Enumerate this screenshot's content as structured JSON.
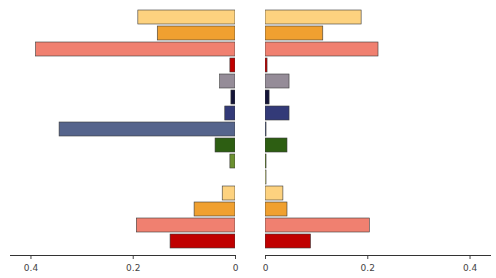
{
  "chart_data": [
    {
      "type": "bar",
      "orientation": "horizontal",
      "tick_labels": "x",
      "categories": [
        null,
        null,
        null,
        null,
        null,
        null,
        null,
        null,
        null,
        null,
        null,
        null,
        null,
        null,
        null
      ],
      "values": [
        0.19,
        0.152,
        0.39,
        0.01,
        0.03,
        0.008,
        0.02,
        0.344,
        0.039,
        0.01,
        0,
        0.025,
        0.08,
        0.193,
        0.127
      ],
      "colors": [
        "#fdd27f",
        "#f0a030",
        "#f08070",
        "#c00000",
        "#958c98",
        "#141438",
        "#333a78",
        "#55648c",
        "#2d5e12",
        "#6b9030",
        "#e8f0a0",
        "#fdd27f",
        "#f0a030",
        "#f08070",
        "#c00000"
      ],
      "xlim": [
        0.44,
        0
      ],
      "xticks": [
        0.4,
        0.2,
        0
      ]
    },
    {
      "type": "bar",
      "orientation": "horizontal",
      "tick_labels": "x",
      "categories": [
        null,
        null,
        null,
        null,
        null,
        null,
        null,
        null,
        null,
        null,
        null,
        null,
        null,
        null,
        null
      ],
      "values": [
        0.188,
        0.113,
        0.221,
        0.004,
        0.047,
        0.008,
        0.047,
        0.002,
        0.043,
        0.002,
        0.002,
        0.035,
        0.043,
        0.204,
        0.089
      ],
      "colors": [
        "#fdd27f",
        "#f0a030",
        "#f08070",
        "#c00000",
        "#958c98",
        "#141438",
        "#333a78",
        "#55648c",
        "#2d5e12",
        "#6b9030",
        "#e8f0a0",
        "#fdd27f",
        "#f0a030",
        "#f08070",
        "#c00000"
      ],
      "xlim": [
        0,
        0.44
      ],
      "xticks": [
        0,
        0.2,
        0.4
      ]
    }
  ]
}
